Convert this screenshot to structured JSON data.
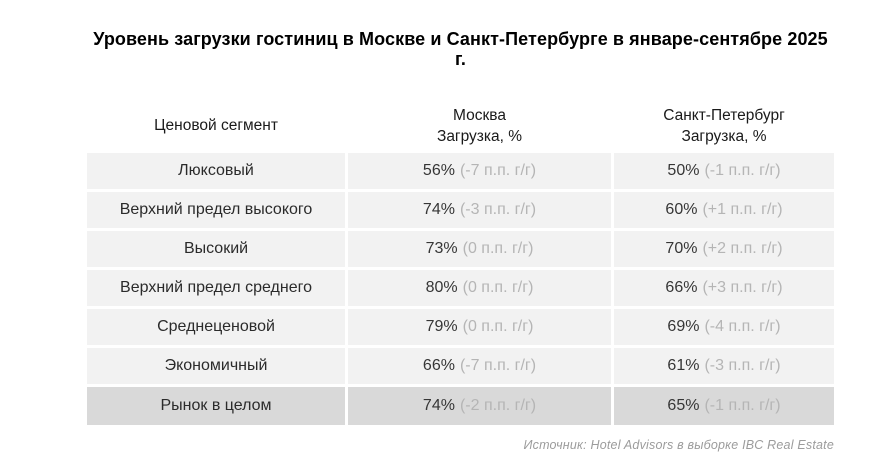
{
  "title": "Уровень загрузки гостиниц в Москве и Санкт-Петербурге в январе-сентябре 2025 г.",
  "source": "Источник: Hotel Advisors в выборке IBC Real Estate",
  "colors": {
    "row_bg": "#f2f2f2",
    "total_row_bg": "#d9d9d9",
    "value_text": "#363636",
    "delta_text": "#b5b5b5",
    "title_text": "#000000",
    "source_text": "#9c9c9c"
  },
  "chart_data": {
    "type": "table",
    "title": "Уровень загрузки гостиниц в Москве и Санкт-Петербурге в январе-сентябре 2025 г.",
    "columns": [
      {
        "label": "Ценовой сегмент",
        "sublabel": ""
      },
      {
        "label": "Москва",
        "sublabel": "Загрузка, %"
      },
      {
        "label": "Санкт-Петербург",
        "sublabel": "Загрузка, %"
      }
    ],
    "rows": [
      {
        "segment": "Люксовый",
        "moscow_value": "56%",
        "moscow_delta": "(-7 п.п. г/г)",
        "spb_value": "50%",
        "spb_delta": "(-1 п.п. г/г)",
        "is_total": false
      },
      {
        "segment": "Верхний предел высокого",
        "moscow_value": "74%",
        "moscow_delta": "(-3 п.п. г/г)",
        "spb_value": "60%",
        "spb_delta": "(+1 п.п. г/г)",
        "is_total": false
      },
      {
        "segment": "Высокий",
        "moscow_value": "73%",
        "moscow_delta": "(0 п.п. г/г)",
        "spb_value": "70%",
        "spb_delta": "(+2 п.п. г/г)",
        "is_total": false
      },
      {
        "segment": "Верхний предел среднего",
        "moscow_value": "80%",
        "moscow_delta": "(0 п.п. г/г)",
        "spb_value": "66%",
        "spb_delta": "(+3 п.п. г/г)",
        "is_total": false
      },
      {
        "segment": "Среднеценовой",
        "moscow_value": "79%",
        "moscow_delta": "(0 п.п. г/г)",
        "spb_value": "69%",
        "spb_delta": "(-4 п.п. г/г)",
        "is_total": false
      },
      {
        "segment": "Экономичный",
        "moscow_value": "66%",
        "moscow_delta": "(-7 п.п. г/г)",
        "spb_value": "61%",
        "spb_delta": "(-3 п.п. г/г)",
        "is_total": false
      },
      {
        "segment": "Рынок в целом",
        "moscow_value": "74%",
        "moscow_delta": "(-2 п.п. г/г)",
        "spb_value": "65%",
        "spb_delta": "(-1 п.п. г/г)",
        "is_total": true
      }
    ],
    "series": [
      {
        "name": "Москва, загрузка %",
        "values": [
          56,
          74,
          73,
          80,
          79,
          66,
          74
        ],
        "delta_pp_yoy": [
          -7,
          -3,
          0,
          0,
          0,
          -7,
          -2
        ]
      },
      {
        "name": "Санкт-Петербург, загрузка %",
        "values": [
          50,
          60,
          70,
          66,
          69,
          61,
          65
        ],
        "delta_pp_yoy": [
          -1,
          1,
          2,
          3,
          -4,
          -3,
          -1
        ]
      }
    ],
    "categories": [
      "Люксовый",
      "Верхний предел высокого",
      "Высокий",
      "Верхний предел среднего",
      "Среднеценовой",
      "Экономичный",
      "Рынок в целом"
    ]
  }
}
